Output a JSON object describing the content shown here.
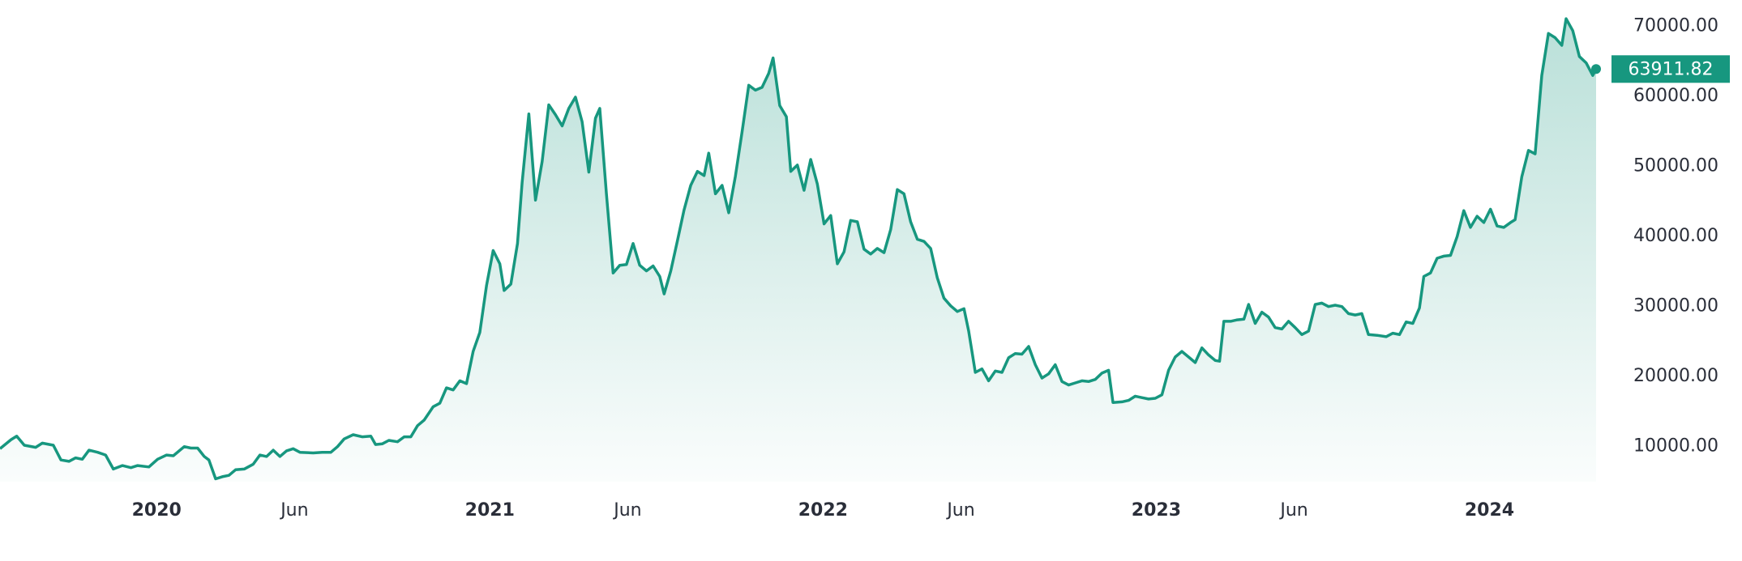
{
  "chart_data": {
    "type": "line",
    "x": [
      2019.53,
      2019.563,
      2019.58,
      2019.603,
      2019.637,
      2019.657,
      2019.69,
      2019.713,
      2019.737,
      2019.757,
      2019.777,
      2019.797,
      2019.823,
      2019.847,
      2019.87,
      2019.897,
      2019.923,
      2019.943,
      2019.977,
      2020.003,
      2020.03,
      2020.05,
      2020.083,
      2020.103,
      2020.123,
      2020.143,
      2020.157,
      2020.177,
      2020.197,
      2020.217,
      2020.237,
      2020.263,
      2020.29,
      2020.31,
      2020.33,
      2020.35,
      2020.37,
      2020.39,
      2020.41,
      2020.43,
      2020.47,
      2020.497,
      2020.523,
      2020.543,
      2020.563,
      2020.59,
      2020.617,
      2020.643,
      2020.657,
      2020.677,
      2020.697,
      2020.723,
      2020.743,
      2020.763,
      2020.783,
      2020.803,
      2020.83,
      2020.85,
      2020.87,
      2020.89,
      2020.91,
      2020.93,
      2020.95,
      2020.97,
      2020.99,
      2021.01,
      2021.03,
      2021.043,
      2021.063,
      2021.083,
      2021.097,
      2021.117,
      2021.137,
      2021.157,
      2021.177,
      2021.197,
      2021.217,
      2021.237,
      2021.257,
      2021.277,
      2021.297,
      2021.317,
      2021.33,
      2021.35,
      2021.37,
      2021.39,
      2021.41,
      2021.43,
      2021.45,
      2021.47,
      2021.49,
      2021.51,
      2021.523,
      2021.543,
      2021.563,
      2021.583,
      2021.603,
      2021.623,
      2021.643,
      2021.657,
      2021.677,
      2021.697,
      2021.717,
      2021.737,
      2021.757,
      2021.777,
      2021.797,
      2021.817,
      2021.837,
      2021.85,
      2021.87,
      2021.89,
      2021.903,
      2021.923,
      2021.943,
      2021.963,
      2021.983,
      2022.003,
      2022.023,
      2022.043,
      2022.063,
      2022.083,
      2022.103,
      2022.123,
      2022.143,
      2022.163,
      2022.183,
      2022.203,
      2022.223,
      2022.243,
      2022.263,
      2022.283,
      2022.303,
      2022.323,
      2022.343,
      2022.363,
      2022.383,
      2022.403,
      2022.423,
      2022.437,
      2022.457,
      2022.477,
      2022.497,
      2022.517,
      2022.537,
      2022.557,
      2022.577,
      2022.597,
      2022.617,
      2022.637,
      2022.657,
      2022.677,
      2022.697,
      2022.717,
      2022.737,
      2022.757,
      2022.777,
      2022.797,
      2022.817,
      2022.837,
      2022.857,
      2022.87,
      2022.897,
      2022.917,
      2022.937,
      2022.957,
      2022.977,
      2022.997,
      2023.017,
      2023.037,
      2023.057,
      2023.077,
      2023.097,
      2023.117,
      2023.137,
      2023.157,
      2023.177,
      2023.19,
      2023.203,
      2023.223,
      2023.243,
      2023.263,
      2023.277,
      2023.297,
      2023.317,
      2023.337,
      2023.357,
      2023.377,
      2023.397,
      2023.417,
      2023.437,
      2023.457,
      2023.477,
      2023.497,
      2023.517,
      2023.537,
      2023.557,
      2023.577,
      2023.597,
      2023.617,
      2023.637,
      2023.663,
      2023.69,
      2023.71,
      2023.73,
      2023.75,
      2023.77,
      2023.79,
      2023.803,
      2023.823,
      2023.843,
      2023.863,
      2023.883,
      2023.903,
      2023.923,
      2023.943,
      2023.963,
      2023.983,
      2024.003,
      2024.023,
      2024.043,
      2024.063,
      2024.077,
      2024.097,
      2024.117,
      2024.137,
      2024.157,
      2024.177,
      2024.197,
      2024.217,
      2024.23,
      2024.25,
      2024.27,
      2024.29,
      2024.31,
      2024.32
    ],
    "values": [
      9700,
      11000,
      11500,
      10200,
      9900,
      10500,
      10200,
      8100,
      7900,
      8400,
      8200,
      9500,
      9200,
      8800,
      6800,
      7300,
      7000,
      7300,
      7100,
      8200,
      8800,
      8700,
      10000,
      9800,
      9800,
      8600,
      8100,
      5400,
      5700,
      5900,
      6700,
      6800,
      7500,
      8800,
      8600,
      9500,
      8600,
      9400,
      9700,
      9200,
      9100,
      9200,
      9200,
      10000,
      11100,
      11700,
      11400,
      11500,
      10300,
      10400,
      10900,
      10700,
      11400,
      11400,
      13000,
      13800,
      15700,
      16200,
      18400,
      18100,
      19400,
      19000,
      23600,
      26300,
      33000,
      38000,
      36100,
      32300,
      33200,
      39000,
      47700,
      57500,
      45200,
      50700,
      58800,
      57400,
      55800,
      58300,
      59900,
      56400,
      49200,
      56900,
      58300,
      46100,
      34800,
      35900,
      36000,
      39000,
      35900,
      35100,
      35800,
      34300,
      31800,
      35100,
      39400,
      43800,
      47300,
      49300,
      48700,
      51900,
      46100,
      47300,
      43400,
      48600,
      54900,
      61600,
      60900,
      61300,
      63300,
      65500,
      58700,
      57100,
      49300,
      50200,
      46600,
      51000,
      47500,
      41800,
      43000,
      36100,
      37800,
      42300,
      42100,
      38200,
      37500,
      38300,
      37700,
      41000,
      46700,
      46100,
      42100,
      39600,
      39300,
      38300,
      34100,
      31200,
      30100,
      29300,
      29700,
      26500,
      20600,
      21100,
      19400,
      20800,
      20600,
      22700,
      23300,
      23200,
      24300,
      21700,
      19800,
      20400,
      21700,
      19300,
      18800,
      19100,
      19400,
      19300,
      19600,
      20500,
      20900,
      16300,
      16400,
      16600,
      17200,
      17000,
      16800,
      16900,
      17400,
      20900,
      22800,
      23600,
      22800,
      22000,
      24100,
      23100,
      22300,
      22200,
      27900,
      27900,
      28100,
      28200,
      30300,
      27600,
      29200,
      28500,
      27000,
      26800,
      27900,
      27000,
      26000,
      26500,
      30300,
      30500,
      30000,
      30200,
      30000,
      29000,
      28800,
      29000,
      26000,
      25900,
      25700,
      26200,
      26000,
      27800,
      27600,
      29800,
      34300,
      34800,
      36900,
      37200,
      37300,
      40000,
      43700,
      41300,
      42900,
      42000,
      43900,
      41500,
      41300,
      42000,
      42400,
      48500,
      52300,
      51800,
      63000,
      69000,
      68400,
      67300,
      71100,
      69400,
      65700,
      64800,
      63000,
      63911.82
    ],
    "color": "#17977f",
    "xlim": [
      2019.53,
      2024.32
    ],
    "xticks": [
      2020,
      {
        "value": 2020.414,
        "label": "Jun"
      },
      2021,
      {
        "value": 2021.414,
        "label": "Jun"
      },
      2022,
      {
        "value": 2022.414,
        "label": "Jun"
      },
      2023,
      {
        "value": 2023.414,
        "label": "Jun"
      },
      2024
    ],
    "ylim": [
      5000,
      72500
    ],
    "yticks": [
      {
        "value": 10000,
        "label": "10000.00"
      },
      {
        "value": 20000,
        "label": "20000.00"
      },
      {
        "value": 30000,
        "label": "30000.00"
      },
      {
        "value": 40000,
        "label": "40000.00"
      },
      {
        "value": 50000,
        "label": "50000.00"
      },
      {
        "value": 60000,
        "label": "60000.00"
      },
      {
        "value": 70000,
        "label": "70000.00"
      }
    ],
    "grid": false
  }
}
